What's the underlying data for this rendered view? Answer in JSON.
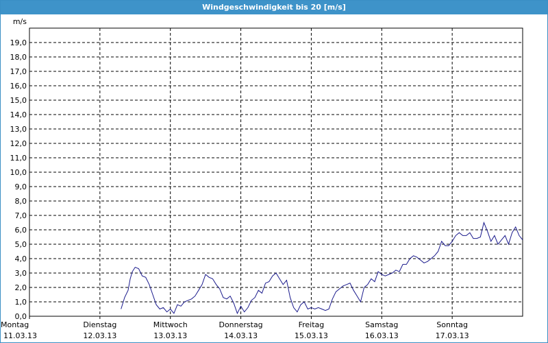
{
  "window": {
    "title": "Windgeschwindigkeit bis 20 [m/s]"
  },
  "chart_data": {
    "type": "line",
    "title": "Windgeschwindigkeit bis 20 [m/s]",
    "ylabel": "m/s",
    "ylim": [
      0,
      20
    ],
    "xlim": [
      0,
      7
    ],
    "yticks": [
      "0,0",
      "1,0",
      "2,0",
      "3,0",
      "4,0",
      "5,0",
      "6,0",
      "7,0",
      "8,0",
      "9,0",
      "10,0",
      "11,0",
      "12,0",
      "13,0",
      "14,0",
      "15,0",
      "16,0",
      "17,0",
      "18,0",
      "19,0"
    ],
    "xticks": [
      {
        "day": "Montag",
        "date": "11.03.13"
      },
      {
        "day": "Dienstag",
        "date": "12.03.13"
      },
      {
        "day": "Mittwoch",
        "date": "13.03.13"
      },
      {
        "day": "Donnerstag",
        "date": "14.03.13"
      },
      {
        "day": "Freitag",
        "date": "15.03.13"
      },
      {
        "day": "Samstag",
        "date": "16.03.13"
      },
      {
        "day": "Sonntag",
        "date": "17.03.13"
      }
    ],
    "grid": true,
    "line_color": "#1a1a8c",
    "series": [
      {
        "x": [
          1.3,
          1.35,
          1.4,
          1.43,
          1.46,
          1.5,
          1.55,
          1.6,
          1.65,
          1.7,
          1.75,
          1.8,
          1.85,
          1.9,
          1.95,
          2.0,
          2.05,
          2.1,
          2.15,
          2.2,
          2.25,
          2.3,
          2.35,
          2.4,
          2.45,
          2.5,
          2.55,
          2.6,
          2.65,
          2.7,
          2.75,
          2.8,
          2.85,
          2.9,
          2.95,
          3.0,
          3.05,
          3.1,
          3.15,
          3.2,
          3.25,
          3.3,
          3.35,
          3.4,
          3.45,
          3.5,
          3.55,
          3.6,
          3.65,
          3.7,
          3.75,
          3.8,
          3.85,
          3.9,
          3.95,
          4.0,
          4.05,
          4.1,
          4.15,
          4.2,
          4.25,
          4.3,
          4.35,
          4.4,
          4.45,
          4.5,
          4.55,
          4.6,
          4.65,
          4.7,
          4.75,
          4.8,
          4.85,
          4.9,
          4.95,
          5.0,
          5.05,
          5.1,
          5.15,
          5.2,
          5.25,
          5.3,
          5.35,
          5.4,
          5.45,
          5.5,
          5.55,
          5.6,
          5.65,
          5.7,
          5.75,
          5.8,
          5.85,
          5.9,
          5.95,
          6.0,
          6.05,
          6.1,
          6.15,
          6.2,
          6.25,
          6.3,
          6.35,
          6.4,
          6.45,
          6.5,
          6.55,
          6.6,
          6.65,
          6.7,
          6.75,
          6.8,
          6.85,
          6.9,
          6.95,
          7.0
        ],
        "values": [
          0.5,
          1.3,
          1.8,
          2.6,
          3.1,
          3.4,
          3.3,
          2.8,
          2.7,
          2.2,
          1.5,
          0.8,
          0.5,
          0.6,
          0.3,
          0.5,
          0.2,
          0.8,
          0.7,
          1.0,
          1.1,
          1.2,
          1.4,
          1.8,
          2.2,
          2.9,
          2.7,
          2.6,
          2.2,
          1.9,
          1.3,
          1.2,
          1.4,
          0.9,
          0.2,
          0.7,
          0.3,
          0.6,
          1.1,
          1.3,
          1.8,
          1.6,
          2.3,
          2.4,
          2.8,
          3.0,
          2.6,
          2.2,
          2.5,
          1.3,
          0.6,
          0.3,
          0.8,
          1.0,
          0.5,
          0.6,
          0.5,
          0.6,
          0.5,
          0.4,
          0.5,
          1.2,
          1.7,
          1.9,
          2.1,
          2.2,
          2.3,
          1.8,
          1.4,
          1.0,
          2.0,
          2.2,
          2.6,
          2.4,
          3.1,
          2.9,
          2.8,
          2.9,
          3.0,
          3.2,
          3.1,
          3.6,
          3.6,
          4.0,
          4.2,
          4.1,
          3.9,
          3.7,
          3.8,
          4.0,
          4.2,
          4.5,
          5.2,
          4.9,
          4.9,
          5.2,
          5.6,
          5.8,
          5.6,
          5.6,
          5.8,
          5.4,
          5.4,
          5.5,
          6.5,
          5.9,
          5.2,
          5.6,
          5.0,
          5.3,
          5.6,
          5.0,
          5.8,
          6.2,
          5.6,
          5.3
        ]
      }
    ]
  }
}
